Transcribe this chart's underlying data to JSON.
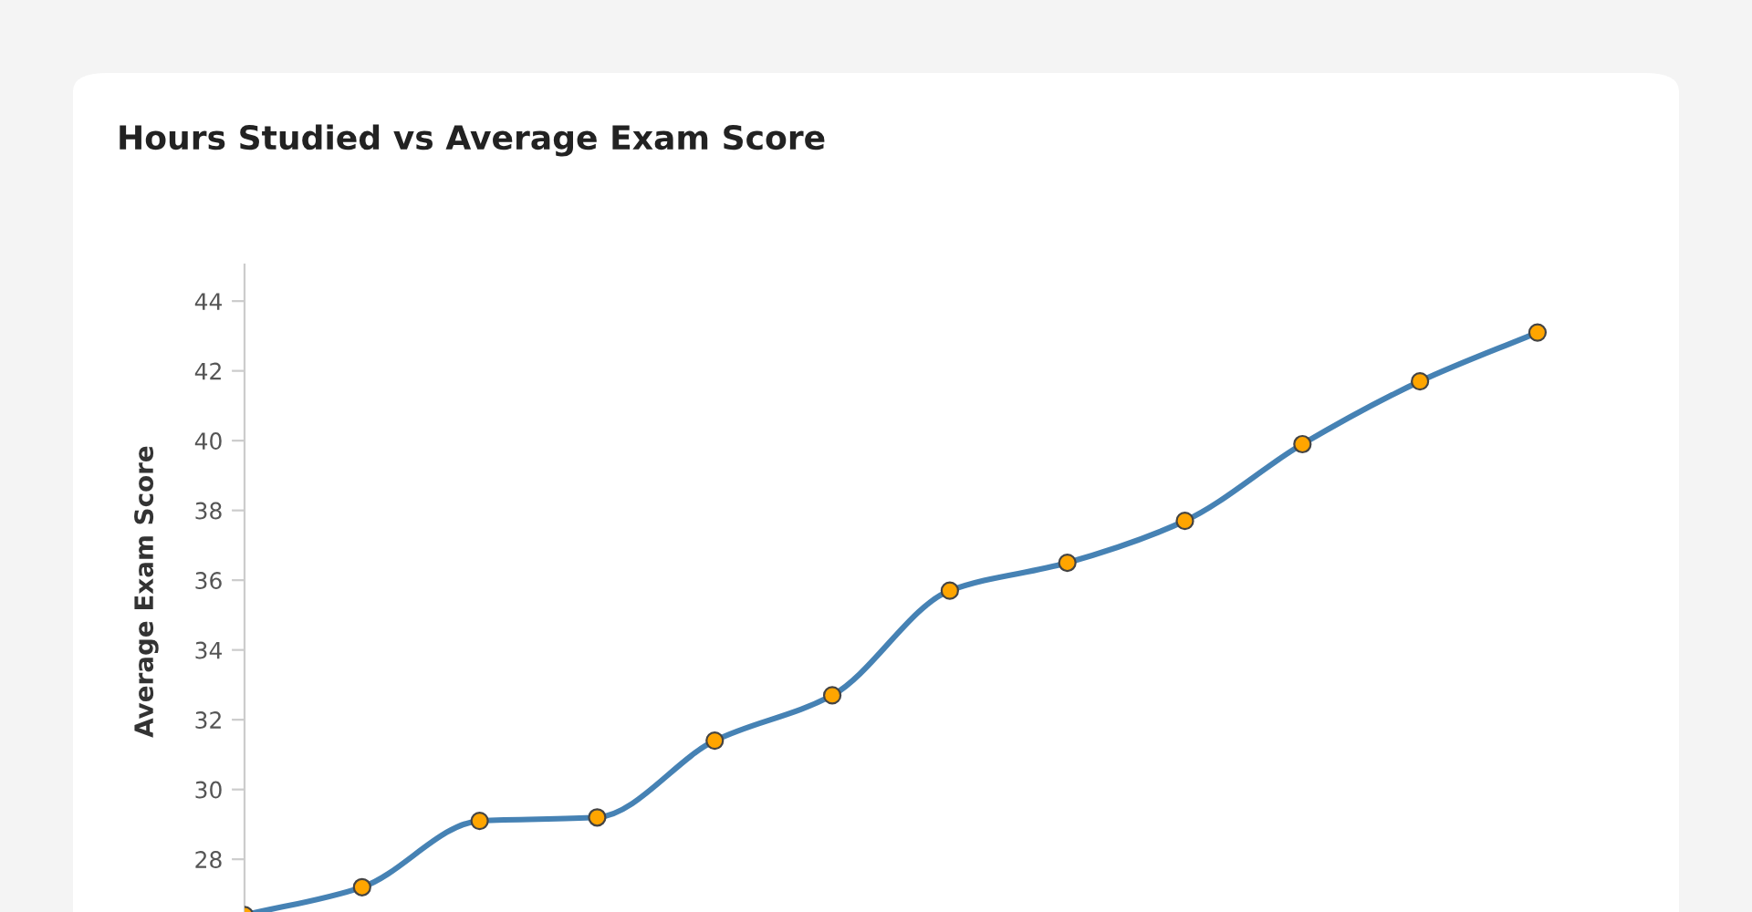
{
  "chart_data": {
    "type": "line",
    "title": "Hours Studied vs Average Exam Score",
    "ylabel": "Average Exam Score",
    "categories": [
      null,
      null,
      null,
      null,
      null,
      null,
      null,
      null,
      null,
      null,
      null,
      null
    ],
    "series": [
      {
        "color": "#4682b4",
        "values": [
          26.4,
          27.2,
          29.1,
          29.2,
          31.4,
          32.7,
          35.7,
          36.5,
          37.7,
          39.9,
          41.7,
          43.1
        ]
      }
    ],
    "marker": "circle",
    "line_style": "solid",
    "grid": false,
    "legend": false,
    "ylim": [
      26.3,
      45.05
    ],
    "yticks": [
      28,
      30,
      32,
      34,
      36,
      38,
      40,
      42,
      44
    ]
  }
}
